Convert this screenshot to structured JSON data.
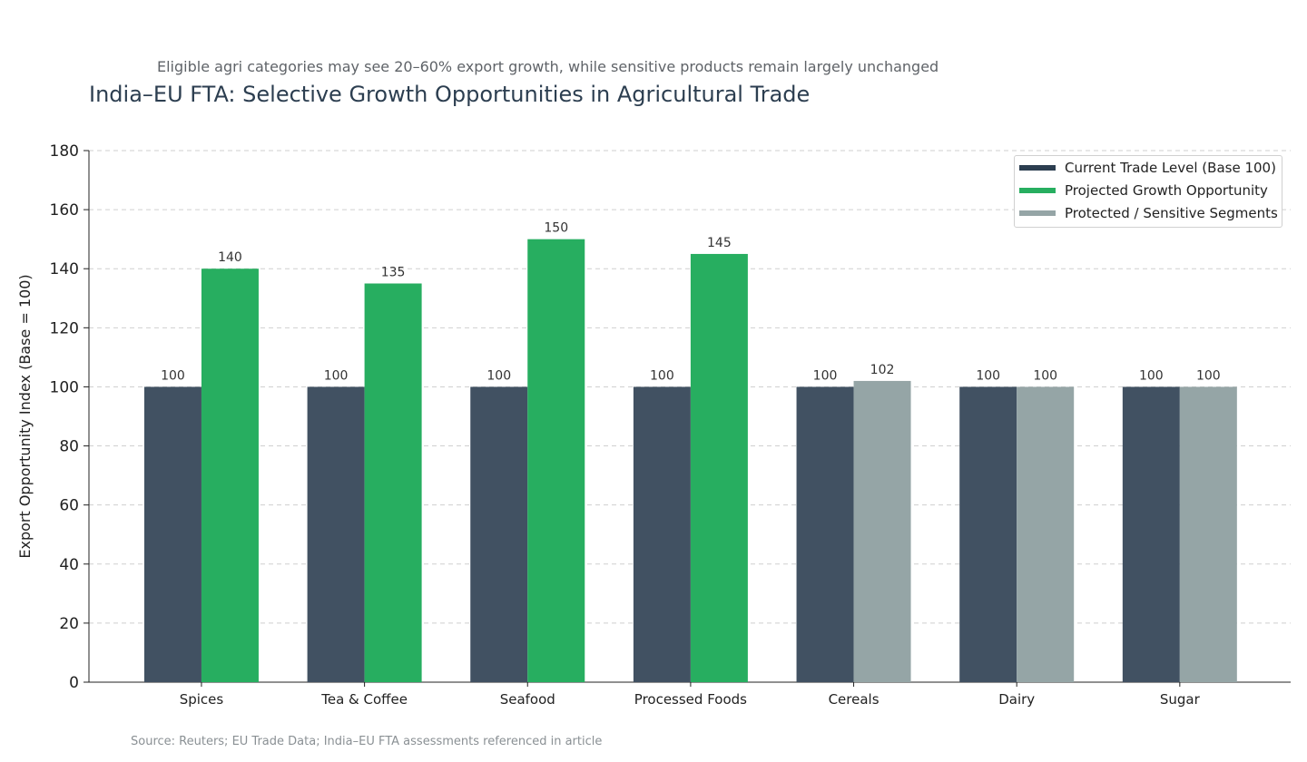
{
  "chart_data": {
    "type": "bar",
    "title": "India–EU FTA: Selective Growth Opportunities in Agricultural Trade",
    "subtitle": "Eligible agri categories may see 20–60% export growth, while sensitive products remain largely unchanged",
    "xlabel": "",
    "ylabel": "Export Opportunity Index (Base = 100)",
    "ylim": [
      0,
      180
    ],
    "yticks": [
      0,
      20,
      40,
      60,
      80,
      100,
      120,
      140,
      160,
      180
    ],
    "grid": "horizontal dashed",
    "legend_position": "top-right",
    "categories": [
      "Spices",
      "Tea & Coffee",
      "Seafood",
      "Processed Foods",
      "Cereals",
      "Dairy",
      "Sugar"
    ],
    "series": [
      {
        "name": "Current Trade Level (Base 100)",
        "color": "#2c3e50",
        "values": [
          100,
          100,
          100,
          100,
          100,
          100,
          100
        ]
      },
      {
        "name": "Projected Growth Opportunity",
        "color": "#27ae60",
        "values": [
          140,
          135,
          150,
          145,
          null,
          null,
          null
        ]
      },
      {
        "name": "Protected / Sensitive Segments",
        "color": "#95a5a6",
        "values": [
          null,
          null,
          null,
          null,
          102,
          100,
          100
        ]
      }
    ],
    "source": "Source: Reuters; EU Trade Data; India–EU FTA assessments referenced in article"
  }
}
